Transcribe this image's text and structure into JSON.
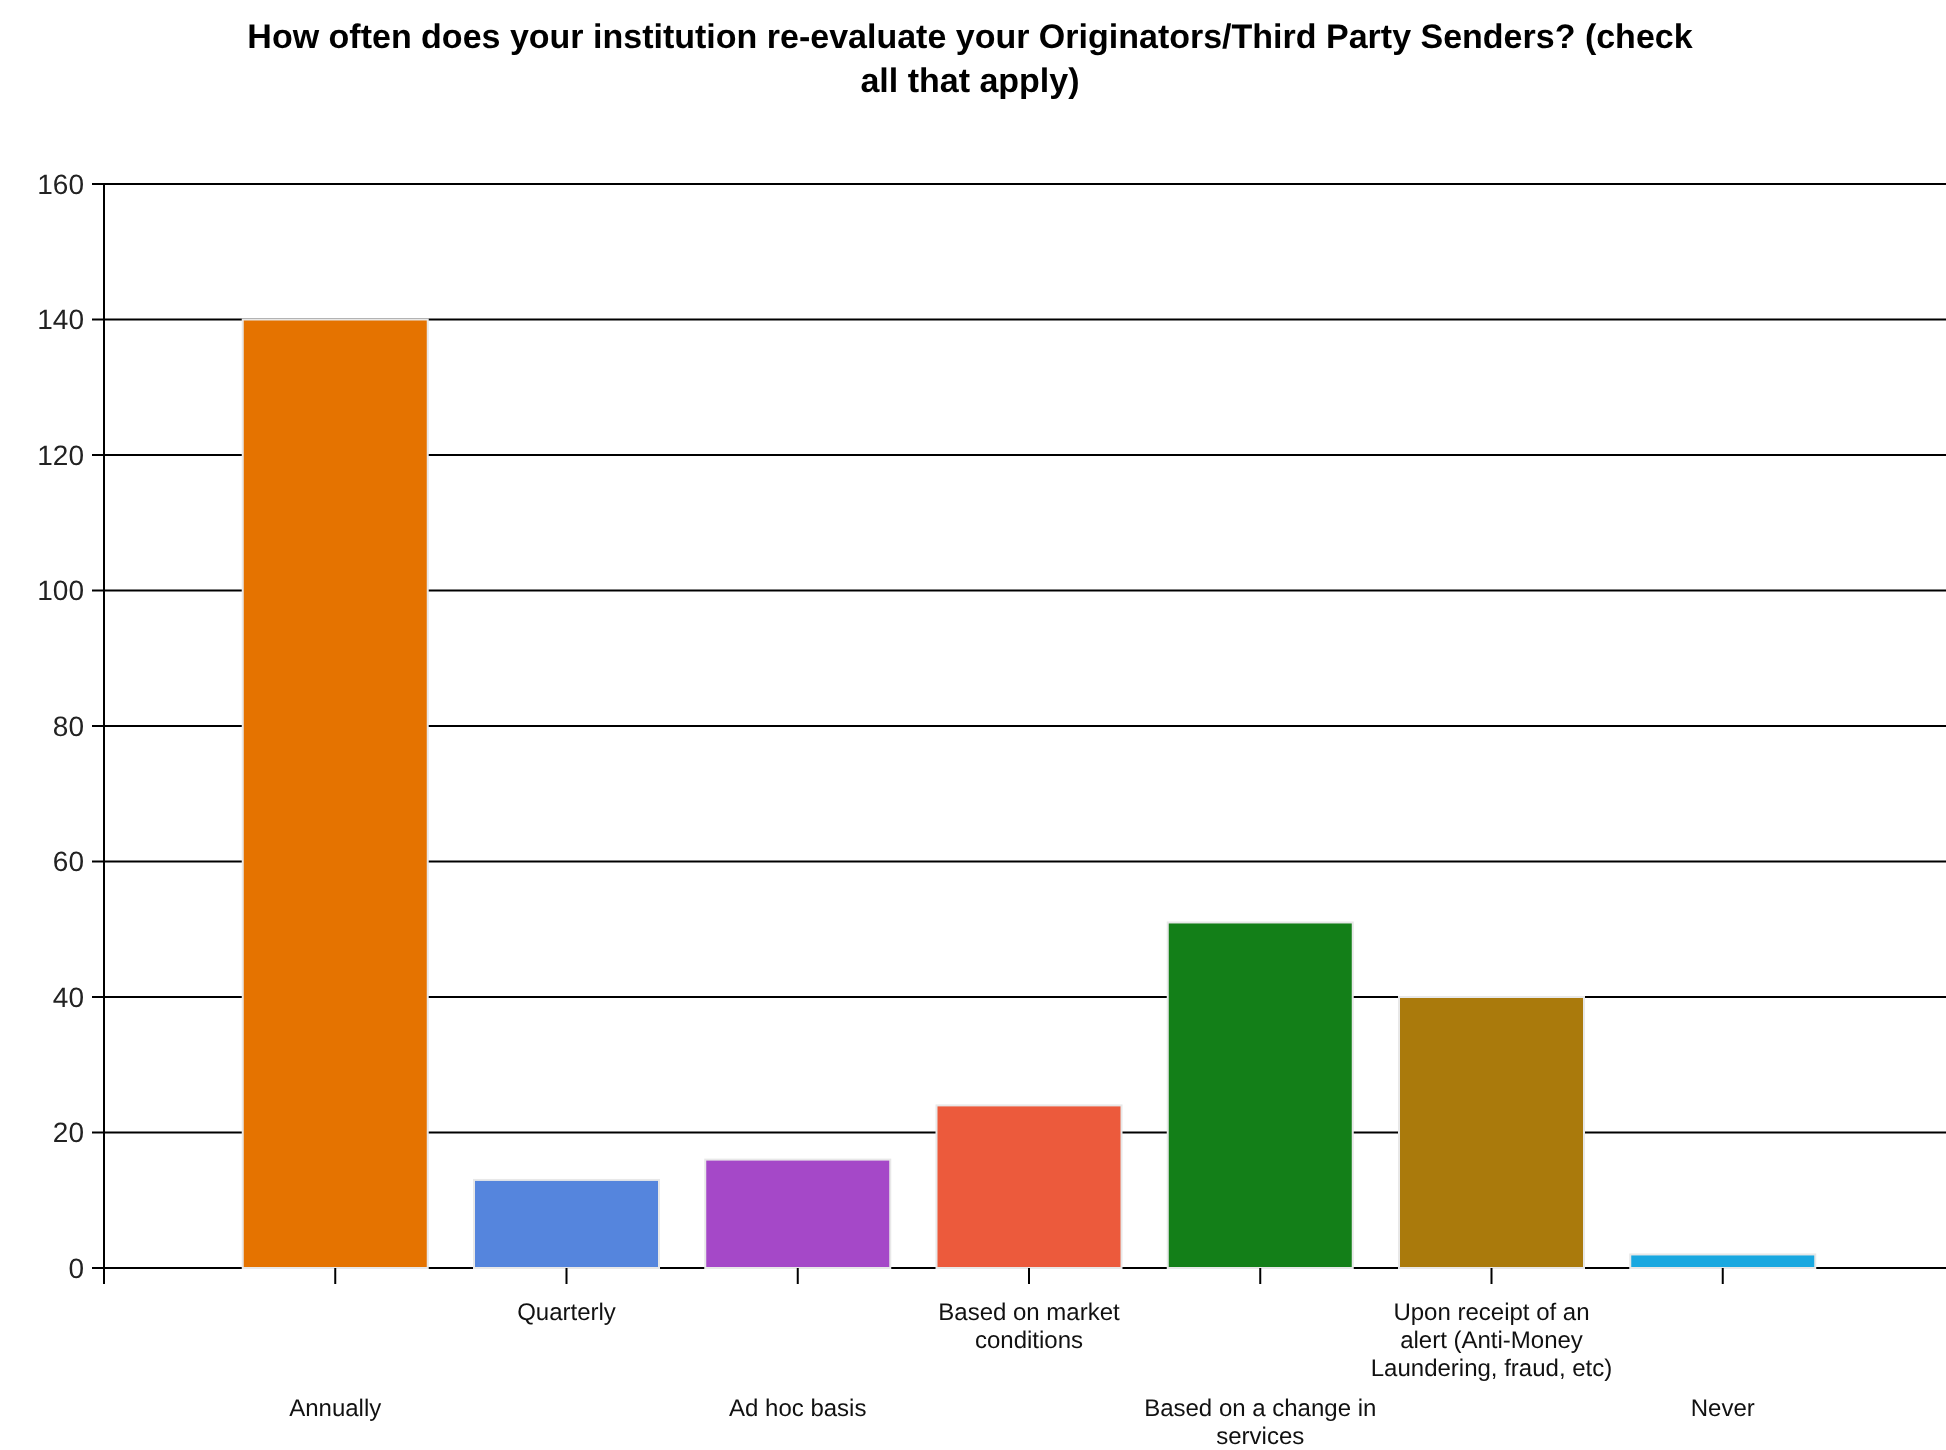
{
  "chart_data": {
    "type": "bar",
    "title": "How often does your institution re-evaluate your Originators/Third Party Senders? (check all that apply)",
    "categories": [
      "Annually",
      "Quarterly",
      "Ad hoc basis",
      "Based on market conditions",
      "Based on a change in services",
      "Upon receipt of an alert (Anti-Money Laundering, fraud, etc)",
      "Never"
    ],
    "values": [
      140,
      13,
      16,
      24,
      51,
      40,
      2
    ],
    "colors": [
      "#e57300",
      "#5585dd",
      "#a548c8",
      "#ec5a3c",
      "#137f18",
      "#aa7a0c",
      "#1aa8e0"
    ],
    "ylim": [
      0,
      160
    ],
    "yticks": [
      0,
      20,
      40,
      60,
      80,
      100,
      120,
      140,
      160
    ],
    "grid": "y"
  }
}
